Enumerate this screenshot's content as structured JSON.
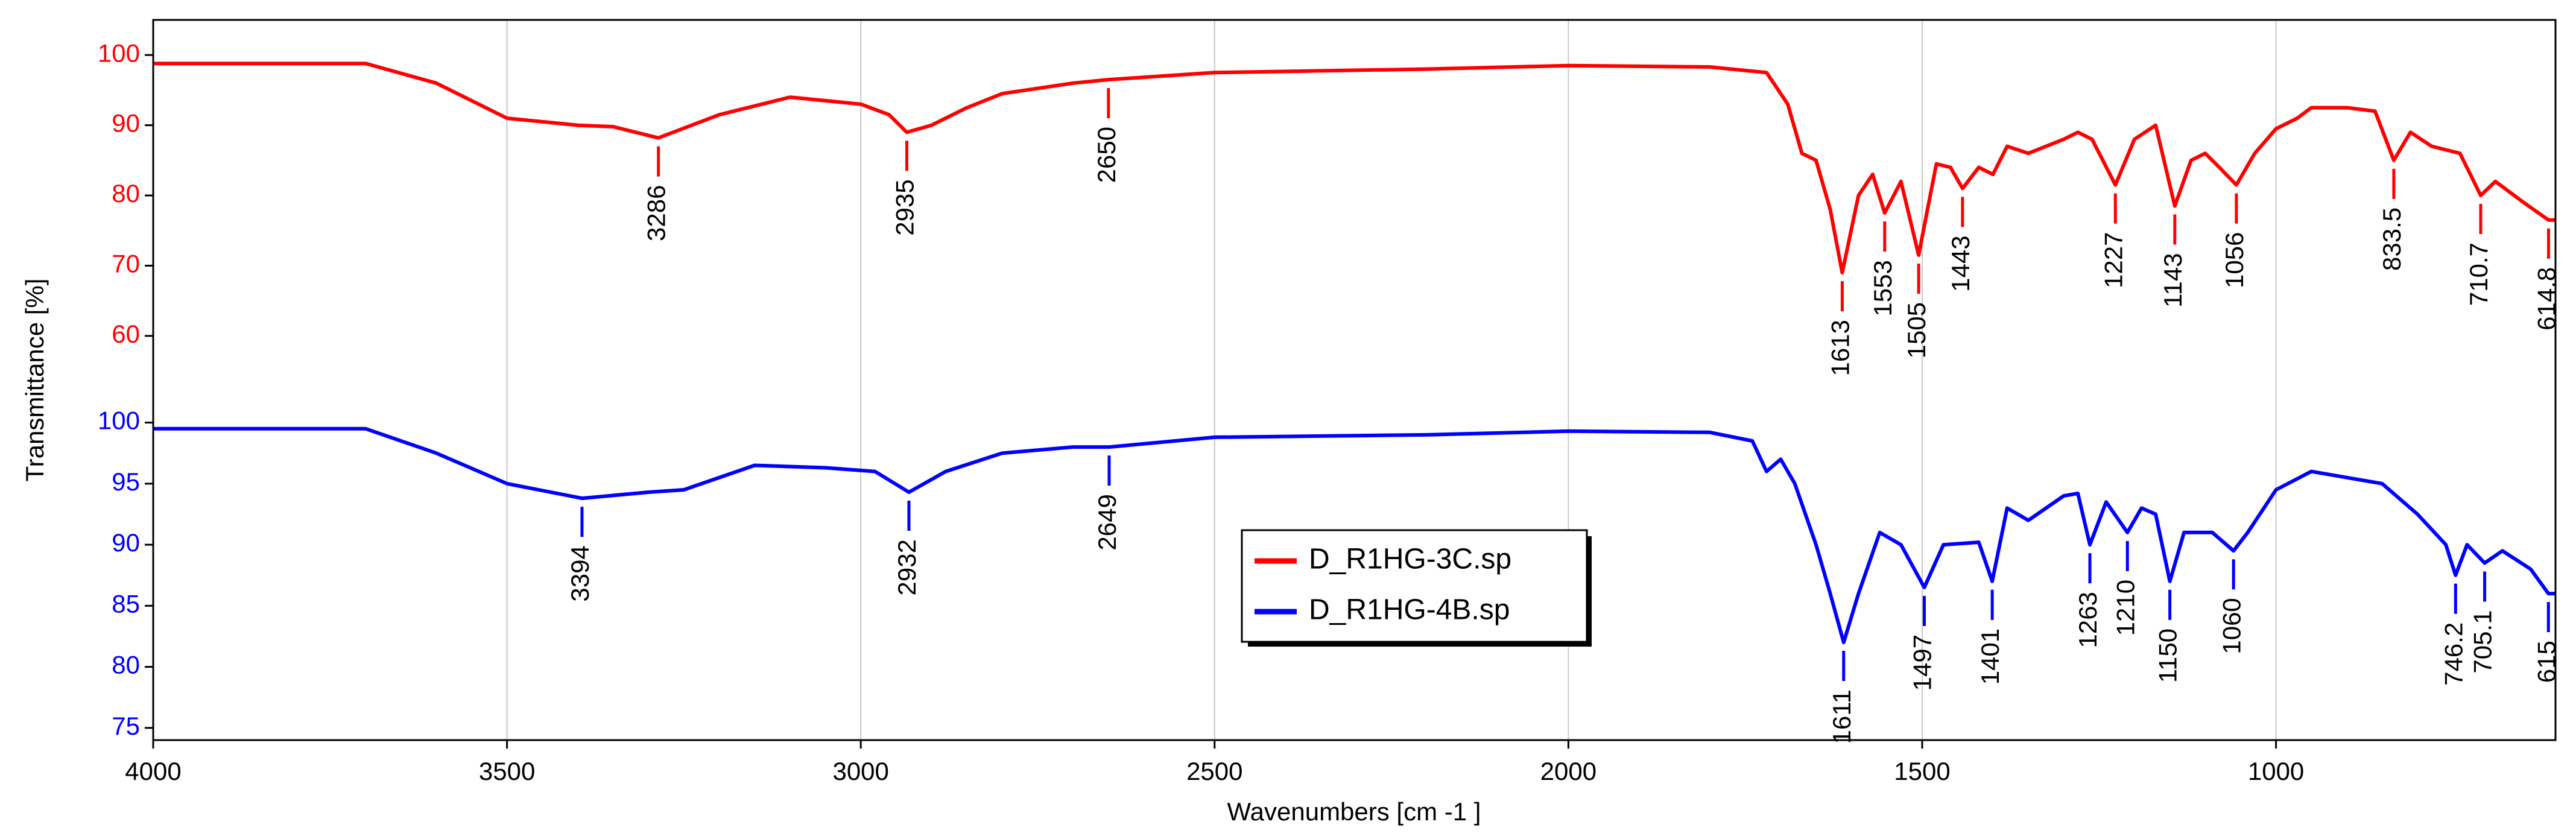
{
  "chart_data": [
    {
      "type": "line",
      "xlim": [
        4000,
        605
      ],
      "ylim": [
        52,
        105
      ],
      "yticks": [
        60,
        70,
        80,
        90,
        100
      ],
      "x": [
        4000,
        3700,
        3600,
        3500,
        3400,
        3350,
        3286,
        3200,
        3100,
        3000,
        2960,
        2935,
        2900,
        2850,
        2800,
        2700,
        2650,
        2500,
        2200,
        2000,
        1800,
        1720,
        1690,
        1670,
        1650,
        1630,
        1613,
        1590,
        1570,
        1553,
        1530,
        1505,
        1480,
        1460,
        1443,
        1420,
        1400,
        1380,
        1350,
        1300,
        1280,
        1260,
        1227,
        1200,
        1170,
        1143,
        1120,
        1100,
        1080,
        1056,
        1030,
        1000,
        970,
        950,
        900,
        860,
        833.5,
        810,
        780,
        740,
        710.7,
        690,
        650,
        614.8,
        605
      ],
      "series": [
        {
          "name": "D_R1HG-3C.sp",
          "color": "#ff0000",
          "values": [
            98.8,
            98.8,
            96,
            91,
            90,
            89.8,
            88.2,
            91.5,
            94,
            93,
            91.5,
            89,
            90,
            92.5,
            94.5,
            96,
            96.5,
            97.5,
            98,
            98.5,
            98.3,
            97.5,
            93,
            86,
            85,
            78,
            69,
            80,
            83,
            77.5,
            82,
            71.5,
            84.5,
            84,
            81,
            84,
            83,
            87,
            86,
            88,
            89,
            88,
            81.5,
            88,
            90,
            78.5,
            85,
            86,
            84,
            81.5,
            86,
            89.5,
            91,
            92.5,
            92.5,
            92,
            85,
            89,
            87,
            86,
            80,
            82,
            79,
            76.5,
            76.5
          ]
        }
      ],
      "peaks": [
        3286,
        2935,
        2650,
        1613,
        1553,
        1505,
        1443,
        1227,
        1143,
        1056,
        833.5,
        710.7,
        614.8
      ]
    },
    {
      "type": "line",
      "xlim": [
        4000,
        605
      ],
      "xticks": [
        4000,
        3500,
        3000,
        2500,
        2000,
        1500,
        1000
      ],
      "xlabel": "Wavenumbers [cm -1 ]",
      "ylabel": "Transmittance [%]",
      "ylim": [
        74,
        102.5
      ],
      "yticks": [
        75,
        80,
        85,
        90,
        95,
        100
      ],
      "x": [
        4000,
        3700,
        3600,
        3500,
        3394,
        3300,
        3250,
        3150,
        3050,
        2980,
        2932,
        2880,
        2800,
        2700,
        2649,
        2500,
        2200,
        2000,
        1800,
        1740,
        1720,
        1700,
        1680,
        1650,
        1630,
        1611,
        1590,
        1560,
        1530,
        1497,
        1470,
        1420,
        1401,
        1380,
        1350,
        1300,
        1280,
        1263,
        1240,
        1210,
        1190,
        1170,
        1150,
        1130,
        1090,
        1060,
        1040,
        1000,
        950,
        900,
        850,
        800,
        760,
        746.2,
        730,
        705.1,
        680,
        640,
        615,
        605
      ],
      "series": [
        {
          "name": "D_R1HG-4B.sp",
          "color": "#0000ff",
          "values": [
            99.5,
            99.5,
            97.5,
            95,
            93.8,
            94.3,
            94.5,
            96.5,
            96.3,
            96,
            94.3,
            96,
            97.5,
            98,
            98,
            98.8,
            99,
            99.3,
            99.2,
            98.5,
            96,
            97,
            95,
            90,
            86,
            82,
            86,
            91,
            90,
            86.5,
            90,
            90.2,
            87,
            93,
            92,
            94,
            94.2,
            90,
            93.5,
            91,
            93,
            92.5,
            87,
            91,
            91,
            89.5,
            91,
            94.5,
            96,
            95.5,
            95,
            92.5,
            90,
            87.5,
            90,
            88.5,
            89.5,
            88,
            86,
            86
          ]
        }
      ],
      "peaks": [
        3394,
        2932,
        2649,
        1611,
        1497,
        1401,
        1263,
        1210,
        1150,
        1060,
        746.2,
        705.1,
        615
      ]
    }
  ]
}
